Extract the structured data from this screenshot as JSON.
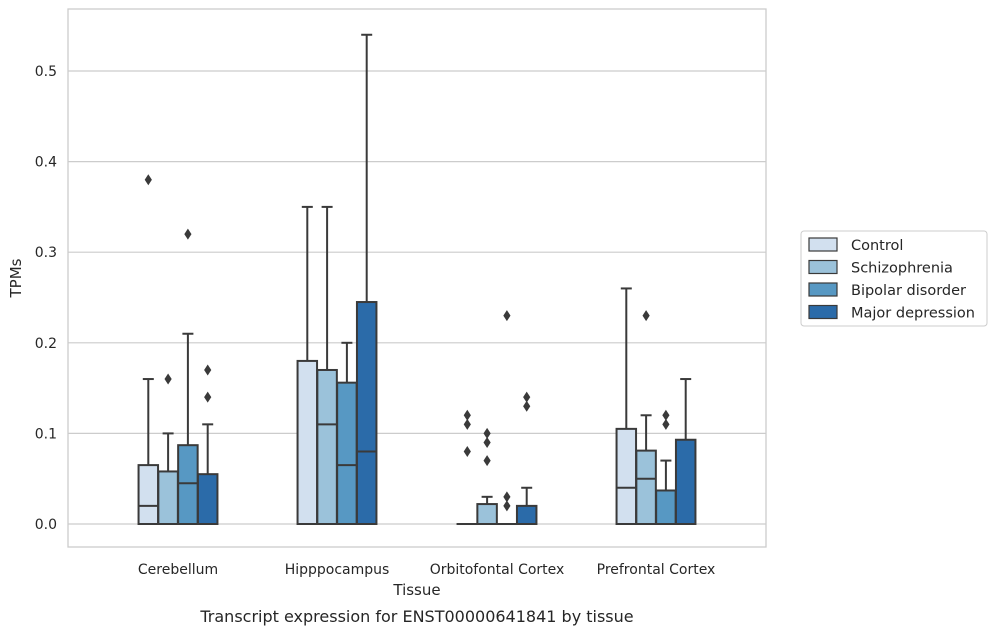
{
  "chart_data": {
    "type": "boxplot",
    "caption": "Transcript expression for ENST00000641841 by tissue",
    "xlabel": "Tissue",
    "ylabel": "TPMs",
    "ylim": [
      -0.026,
      0.57
    ],
    "yticks": [
      "0.0",
      "0.1",
      "0.2",
      "0.3",
      "0.4",
      "0.5"
    ],
    "ytick_values": [
      0,
      0.1,
      0.2,
      0.3,
      0.4,
      0.5
    ],
    "grid": "horizontal",
    "legend_position": "right",
    "categories": [
      "Cerebellum",
      "Hipppocampus",
      "Orbitofontal Cortex",
      "Prefrontal Cortex"
    ],
    "series": [
      {
        "name": "Control",
        "color": "#d2e0ef",
        "boxes": [
          {
            "q1": 0,
            "median": 0.02,
            "q3": 0.065,
            "whisker_low": 0,
            "whisker_high": 0.16,
            "outliers": [
              0.38
            ]
          },
          {
            "q1": 0,
            "median": 0,
            "q3": 0.18,
            "whisker_low": 0,
            "whisker_high": 0.35,
            "outliers": []
          },
          {
            "q1": 0,
            "median": 0,
            "q3": 0,
            "whisker_low": 0,
            "whisker_high": 0,
            "outliers": [
              0.08,
              0.11,
              0.12
            ]
          },
          {
            "q1": 0,
            "median": 0.04,
            "q3": 0.105,
            "whisker_low": 0,
            "whisker_high": 0.26,
            "outliers": []
          }
        ]
      },
      {
        "name": "Schizophrenia",
        "color": "#9bc2da",
        "boxes": [
          {
            "q1": 0,
            "median": 0,
            "q3": 0.058,
            "whisker_low": 0,
            "whisker_high": 0.1,
            "outliers": [
              0.16
            ]
          },
          {
            "q1": 0,
            "median": 0.11,
            "q3": 0.17,
            "whisker_low": 0,
            "whisker_high": 0.35,
            "outliers": []
          },
          {
            "q1": 0,
            "median": 0,
            "q3": 0.022,
            "whisker_low": 0,
            "whisker_high": 0.03,
            "outliers": [
              0.07,
              0.09,
              0.1
            ]
          },
          {
            "q1": 0,
            "median": 0.05,
            "q3": 0.081,
            "whisker_low": 0,
            "whisker_high": 0.12,
            "outliers": [
              0.23
            ]
          }
        ]
      },
      {
        "name": "Bipolar disorder",
        "color": "#5798c3",
        "boxes": [
          {
            "q1": 0,
            "median": 0.045,
            "q3": 0.087,
            "whisker_low": 0,
            "whisker_high": 0.21,
            "outliers": [
              0.32
            ]
          },
          {
            "q1": 0,
            "median": 0.065,
            "q3": 0.156,
            "whisker_low": 0,
            "whisker_high": 0.2,
            "outliers": []
          },
          {
            "q1": 0,
            "median": 0,
            "q3": 0,
            "whisker_low": 0,
            "whisker_high": 0,
            "outliers": [
              0.02,
              0.03,
              0.23
            ]
          },
          {
            "q1": 0,
            "median": 0,
            "q3": 0.037,
            "whisker_low": 0,
            "whisker_high": 0.07,
            "outliers": [
              0.11,
              0.12
            ]
          }
        ]
      },
      {
        "name": "Major depression",
        "color": "#2b6ba9",
        "boxes": [
          {
            "q1": 0,
            "median": 0,
            "q3": 0.055,
            "whisker_low": 0,
            "whisker_high": 0.11,
            "outliers": [
              0.14,
              0.17
            ]
          },
          {
            "q1": 0,
            "median": 0.08,
            "q3": 0.245,
            "whisker_low": 0,
            "whisker_high": 0.54,
            "outliers": []
          },
          {
            "q1": 0,
            "median": 0,
            "q3": 0.02,
            "whisker_low": 0,
            "whisker_high": 0.04,
            "outliers": [
              0.13,
              0.14
            ]
          },
          {
            "q1": 0,
            "median": 0,
            "q3": 0.093,
            "whisker_low": 0,
            "whisker_high": 0.16,
            "outliers": []
          }
        ]
      }
    ]
  }
}
